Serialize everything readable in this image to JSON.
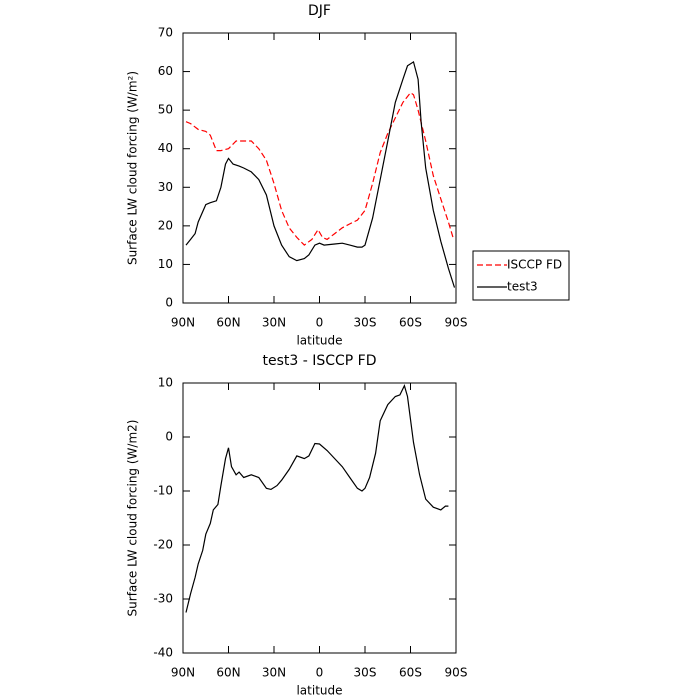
{
  "chart_data": [
    {
      "type": "line",
      "title": "DJF",
      "x_label": "latitude",
      "y_label": "Surface LW cloud forcing (W/m²)",
      "xlim": [
        90,
        -90
      ],
      "ylim": [
        0,
        70
      ],
      "xticks": [
        {
          "value": 90,
          "label": "90N"
        },
        {
          "value": 60,
          "label": "60N"
        },
        {
          "value": 30,
          "label": "30N"
        },
        0,
        {
          "value": -30,
          "label": "30S"
        },
        {
          "value": -60,
          "label": "60S"
        },
        {
          "value": -90,
          "label": "90S"
        }
      ],
      "yticks": [
        0,
        10,
        20,
        30,
        40,
        50,
        60,
        70
      ],
      "legend": "right",
      "series": [
        {
          "name": "ISCCP FD",
          "color": "#ff0000",
          "dash": true,
          "x": [
            88,
            85,
            80,
            75,
            72,
            68,
            65,
            60,
            55,
            50,
            45,
            40,
            35,
            30,
            25,
            20,
            15,
            10,
            5,
            1,
            -2,
            -5,
            -10,
            -15,
            -20,
            -25,
            -30,
            -35,
            -40,
            -45,
            -50,
            -55,
            -60,
            -62,
            -65,
            -70,
            -75,
            -80,
            -85,
            -88
          ],
          "values": [
            47,
            46.5,
            45,
            44.5,
            43.5,
            39.5,
            39.5,
            40,
            42,
            42,
            42,
            40,
            37,
            31,
            24,
            19.5,
            17,
            15,
            16.5,
            19,
            17,
            16.5,
            18,
            19.5,
            20.5,
            21.5,
            24,
            31,
            39,
            44,
            48,
            52,
            54.5,
            54,
            50,
            42,
            33,
            27,
            21,
            17
          ]
        },
        {
          "name": "test3",
          "color": "#000000",
          "dash": false,
          "x": [
            88,
            85,
            82,
            80,
            75,
            72,
            68,
            65,
            62,
            60,
            57,
            53,
            50,
            45,
            40,
            35,
            30,
            25,
            20,
            15,
            10,
            7,
            3,
            0,
            -3,
            -10,
            -15,
            -20,
            -25,
            -28,
            -30,
            -35,
            -40,
            -45,
            -50,
            -55,
            -58,
            -62,
            -65,
            -67,
            -70,
            -75,
            -80,
            -85,
            -89
          ],
          "values": [
            15,
            16.5,
            18,
            21,
            25.5,
            26,
            26.5,
            30,
            36,
            37.5,
            36,
            35.5,
            35,
            34,
            32,
            28,
            20,
            15,
            12,
            11,
            11.5,
            12.5,
            15,
            15.5,
            15,
            15.3,
            15.5,
            15,
            14.5,
            14.5,
            15,
            22,
            32,
            42,
            52,
            58,
            61.5,
            62.5,
            58,
            47,
            35,
            24,
            16,
            9,
            4
          ]
        }
      ]
    },
    {
      "type": "line",
      "title": "test3 - ISCCP FD",
      "x_label": "latitude",
      "y_label": "Surface LW cloud forcing (W/m2)",
      "xlim": [
        90,
        -90
      ],
      "ylim": [
        -40,
        10
      ],
      "xticks": [
        {
          "value": 90,
          "label": "90N"
        },
        {
          "value": 60,
          "label": "60N"
        },
        {
          "value": 30,
          "label": "30N"
        },
        0,
        {
          "value": -30,
          "label": "30S"
        },
        {
          "value": -60,
          "label": "60S"
        },
        {
          "value": -90,
          "label": "90S"
        }
      ],
      "yticks": [
        -40,
        -30,
        -20,
        -10,
        0,
        10
      ],
      "series": [
        {
          "color": "#000000",
          "dash": false,
          "x": [
            88,
            85,
            82,
            80,
            77,
            75,
            72,
            70,
            67,
            65,
            62,
            60,
            58,
            55,
            53,
            50,
            45,
            40,
            35,
            32,
            28,
            25,
            20,
            15,
            10,
            7,
            3,
            0,
            -5,
            -10,
            -15,
            -20,
            -25,
            -28,
            -30,
            -33,
            -37,
            -40,
            -45,
            -50,
            -53,
            -56,
            -58,
            -62,
            -66,
            -70,
            -75,
            -80,
            -83,
            -85
          ],
          "values": [
            -32.5,
            -29,
            -26,
            -23.5,
            -21,
            -18,
            -16,
            -13.5,
            -12.5,
            -9,
            -4,
            -2,
            -5.5,
            -7,
            -6.5,
            -7.5,
            -7,
            -7.5,
            -9.5,
            -9.7,
            -9,
            -8,
            -6,
            -3.5,
            -4,
            -3.5,
            -1.2,
            -1.3,
            -2.5,
            -4,
            -5.5,
            -7.5,
            -9.5,
            -10,
            -9.5,
            -7.5,
            -3,
            3,
            6,
            7.5,
            7.8,
            9.5,
            7.5,
            -1,
            -7,
            -11.5,
            -13,
            -13.5,
            -12.8,
            -12.8
          ]
        }
      ]
    }
  ]
}
